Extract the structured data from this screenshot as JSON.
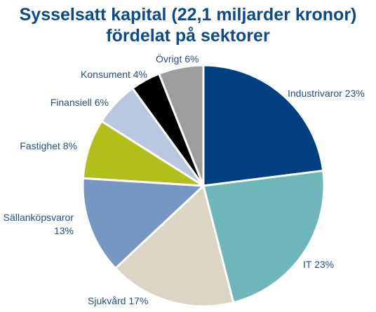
{
  "chart_data": {
    "type": "pie",
    "title": [
      "Sysselsatt kapital (22,1 miljarder kronor)",
      "fördelat på sektorer"
    ],
    "slices": [
      {
        "label": "Industrivaror",
        "value": 23,
        "text": [
          "Industrivaror 23%"
        ],
        "color": "#004080"
      },
      {
        "label": "IT",
        "value": 23,
        "text": [
          "IT 23%"
        ],
        "color": "#6db6b9"
      },
      {
        "label": "Sjukvård",
        "value": 17,
        "text": [
          "Sjukvård 17%"
        ],
        "color": "#dcd5c5"
      },
      {
        "label": "Sällanköpsvaror",
        "value": 13,
        "text": [
          "Sällanköpsvaror",
          "13%"
        ],
        "color": "#7597c1"
      },
      {
        "label": "Fastighet",
        "value": 8,
        "text": [
          "Fastighet 8%"
        ],
        "color": "#b0bf1a"
      },
      {
        "label": "Finansiell",
        "value": 6,
        "text": [
          "Finansiell 6%"
        ],
        "color": "#b7c8e0"
      },
      {
        "label": "Konsument",
        "value": 4,
        "text": [
          "Konsument 4%"
        ],
        "color": "#000000"
      },
      {
        "label": "Övrigt",
        "value": 6,
        "text": [
          "Övrigt 6%"
        ],
        "color": "#9d9d9d"
      }
    ],
    "start": "12 o'clock",
    "direction": "clockwise",
    "legend": "none, labels next to slices"
  }
}
